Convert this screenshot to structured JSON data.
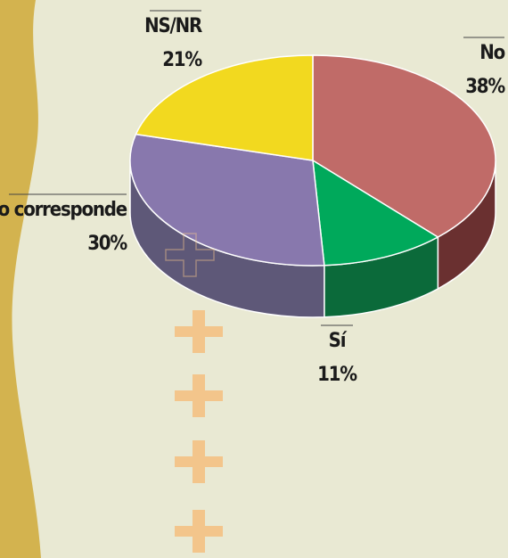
{
  "chart_data": {
    "type": "pie3d",
    "categories": [
      "No",
      "Sí",
      "No corresponde",
      "NS/NR"
    ],
    "values": [
      38,
      11,
      30,
      21
    ],
    "value_labels": [
      "38%",
      "11%",
      "30%",
      "21%"
    ],
    "colors": [
      "#c06b68",
      "#00a95b",
      "#8878ad",
      "#f2d91f"
    ],
    "side_colors": [
      "#6a3030",
      "#0b6a3a",
      "#5e5878",
      "#b9a010"
    ]
  }
}
